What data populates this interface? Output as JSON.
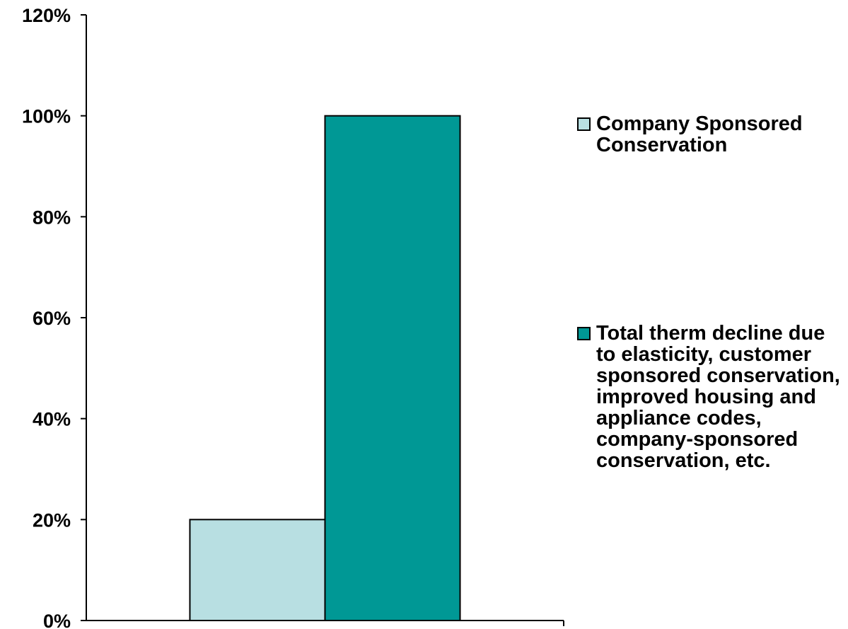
{
  "chart_data": {
    "type": "bar",
    "categories": [
      ""
    ],
    "series": [
      {
        "name": "Company Sponsored Conservation",
        "values": [
          20
        ],
        "color": "#b8dfe2"
      },
      {
        "name": "Total therm decline due to elasticity, customer sponsored conservation, improved housing and appliance codes, company-sponsored conservation, etc.",
        "values": [
          100
        ],
        "color": "#009895"
      }
    ],
    "title": "",
    "xlabel": "",
    "ylabel": "",
    "ylim": [
      0,
      120
    ],
    "yticks": [
      "0%",
      "20%",
      "40%",
      "60%",
      "80%",
      "100%",
      "120%"
    ],
    "grid": false,
    "legend_position": "right"
  }
}
